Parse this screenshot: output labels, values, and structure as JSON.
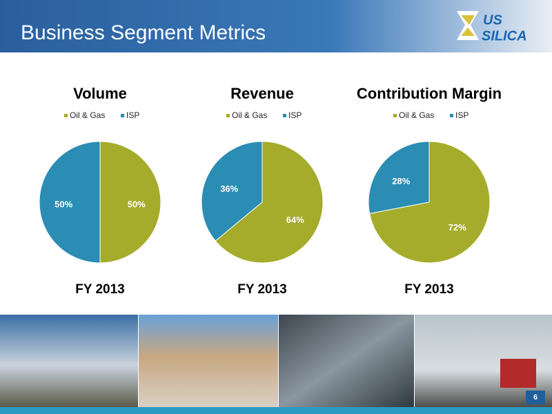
{
  "header": {
    "title": "Business Segment Metrics",
    "logo": [
      "US",
      "SILICA"
    ]
  },
  "chart_data": [
    {
      "type": "pie",
      "title": "Volume",
      "categories": [
        "Oil & Gas",
        "ISP"
      ],
      "values": [
        50,
        50
      ],
      "value_labels": [
        "50%",
        "50%"
      ],
      "colors": [
        "#a5ac2b",
        "#2b8db3"
      ],
      "caption": "FY 2013"
    },
    {
      "type": "pie",
      "title": "Revenue",
      "categories": [
        "Oil & Gas",
        "ISP"
      ],
      "values": [
        64,
        36
      ],
      "value_labels": [
        "64%",
        "36%"
      ],
      "colors": [
        "#a5ac2b",
        "#2b8db3"
      ],
      "caption": "FY 2013"
    },
    {
      "type": "pie",
      "title": "Contribution Margin",
      "categories": [
        "Oil & Gas",
        "ISP"
      ],
      "values": [
        72,
        28
      ],
      "value_labels": [
        "72%",
        "28%"
      ],
      "colors": [
        "#a5ac2b",
        "#2b8db3"
      ],
      "caption": "FY 2013"
    }
  ],
  "footer": {
    "page": "6"
  }
}
